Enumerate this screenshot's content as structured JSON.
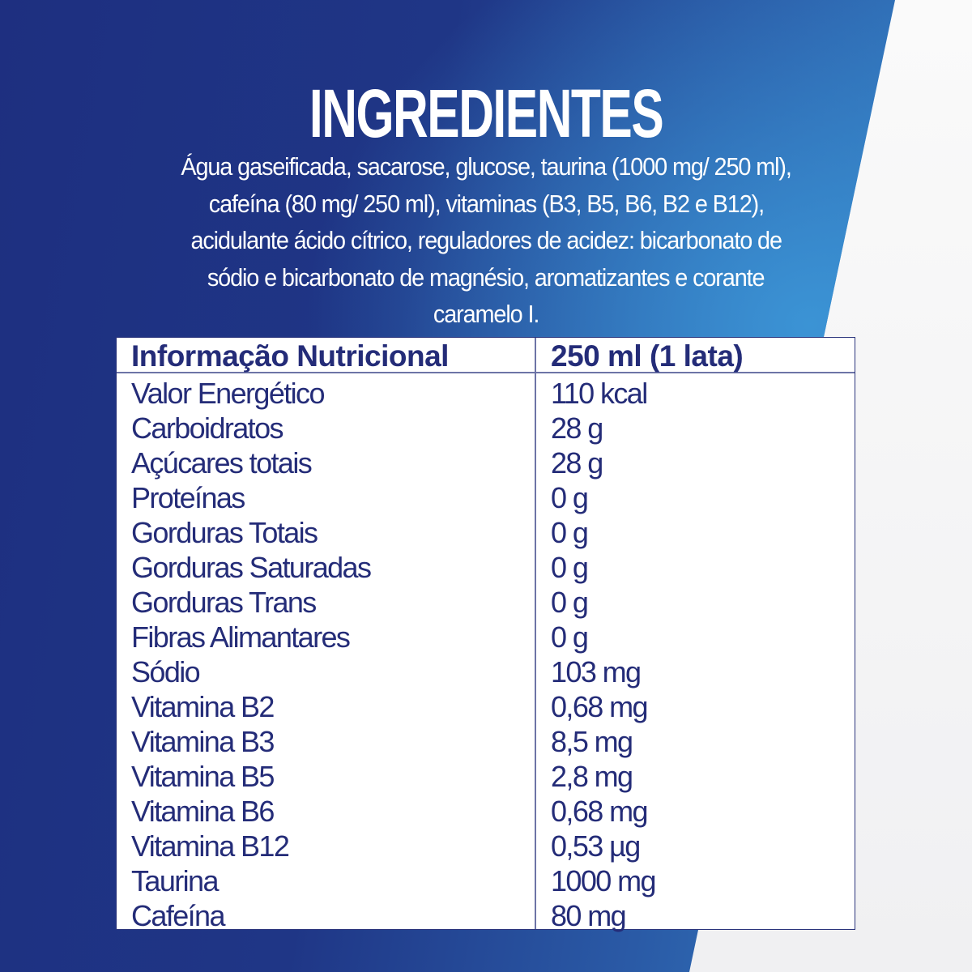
{
  "colors": {
    "dark_blue": "#1e2f80",
    "light_blue": "#3585c8",
    "table_text": "#242c78",
    "background_white": "#f3f3f5"
  },
  "title": "INGREDIENTES",
  "ingredients_lines": [
    "Água gaseificada, sacarose, glucose, taurina (1000 mg/ 250 ml),",
    "cafeína (80 mg/ 250 ml), vitaminas (B3, B5, B6, B2 e B12),",
    "acidulante ácido cítrico, reguladores de acidez: bicarbonato de",
    "sódio e bicarbonato de magnésio, aromatizantes e corante",
    "caramelo I."
  ],
  "table": {
    "header_name": "Informação Nutricional",
    "header_value": "250 ml (1 lata)",
    "rows": [
      {
        "name": "Valor Energético",
        "value": "110 kcal"
      },
      {
        "name": "Carboidratos",
        "value": "28 g"
      },
      {
        "name": "Açúcares totais",
        "value": "28 g"
      },
      {
        "name": "Proteínas",
        "value": "0 g"
      },
      {
        "name": "Gorduras Totais",
        "value": "0 g"
      },
      {
        "name": "Gorduras Saturadas",
        "value": "0 g"
      },
      {
        "name": "Gorduras Trans",
        "value": "0 g"
      },
      {
        "name": "Fibras Alimantares",
        "value": "0 g"
      },
      {
        "name": "Sódio",
        "value": "103 mg"
      },
      {
        "name": "Vitamina B2",
        "value": "0,68 mg"
      },
      {
        "name": "Vitamina B3",
        "value": "8,5 mg"
      },
      {
        "name": "Vitamina B5",
        "value": "2,8 mg"
      },
      {
        "name": "Vitamina B6",
        "value": "0,68 mg"
      },
      {
        "name": "Vitamina B12",
        "value": "0,53 µg"
      },
      {
        "name": "Taurina",
        "value": "1000 mg"
      },
      {
        "name": "Cafeína",
        "value": "80 mg"
      }
    ]
  }
}
